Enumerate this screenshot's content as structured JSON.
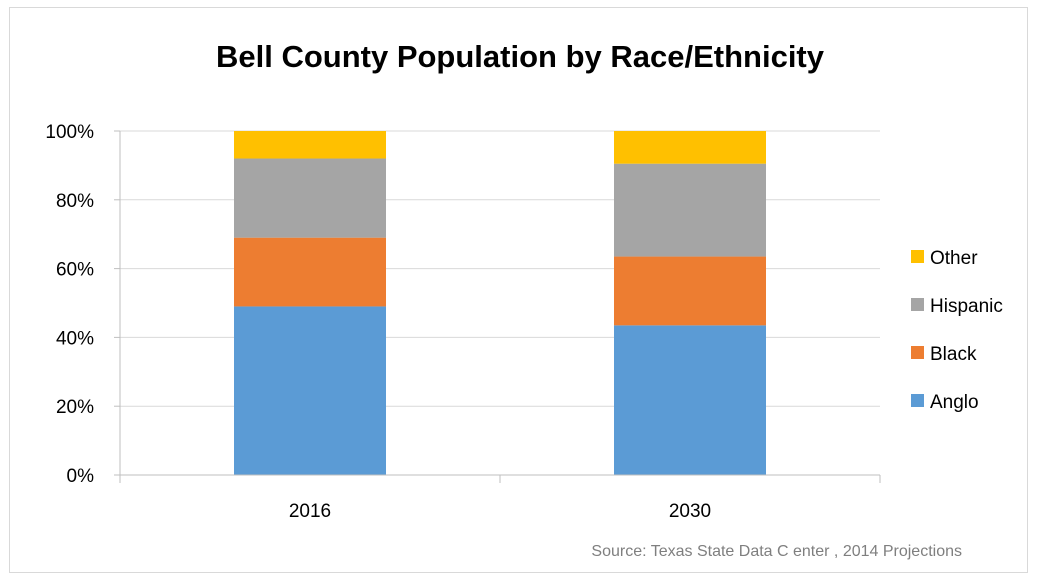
{
  "chart_data": {
    "type": "bar",
    "stacked": true,
    "percent_stacked": true,
    "title": "Bell County Population by Race/Ethnicity",
    "categories": [
      "2016",
      "2030"
    ],
    "series": [
      {
        "name": "Anglo",
        "color": "#5b9bd5",
        "values": [
          49,
          43.5
        ]
      },
      {
        "name": "Black",
        "color": "#ed7d31",
        "values": [
          20,
          20
        ]
      },
      {
        "name": "Hispanic",
        "color": "#a5a5a5",
        "values": [
          23,
          27
        ]
      },
      {
        "name": "Other",
        "color": "#ffc000",
        "values": [
          8,
          9.5
        ]
      }
    ],
    "ylim": [
      0,
      100
    ],
    "yticks": [
      "0%",
      "20%",
      "40%",
      "60%",
      "80%",
      "100%"
    ],
    "grid": true,
    "legend": "right",
    "legend_order": [
      "Other",
      "Hispanic",
      "Black",
      "Anglo"
    ],
    "source": "Source: Texas State Data C enter , 2014 Projections"
  }
}
